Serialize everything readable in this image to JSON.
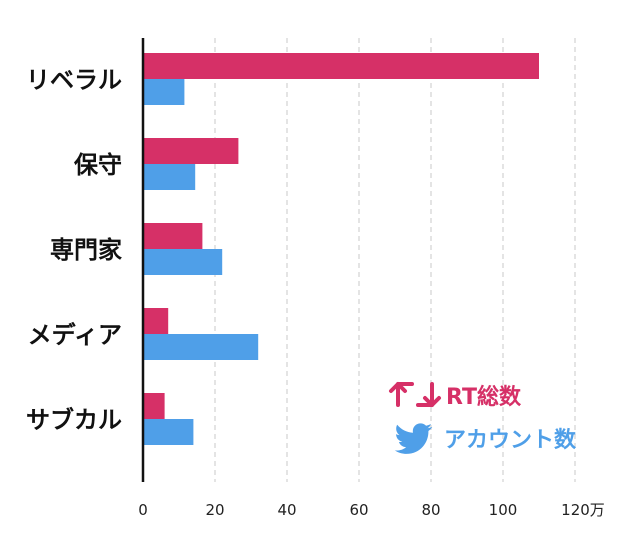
{
  "chart_data": {
    "type": "bar",
    "orientation": "horizontal",
    "categories": [
      "リベラル",
      "保守",
      "専門家",
      "メディア",
      "サブカル"
    ],
    "series": [
      {
        "name": "RT総数",
        "icon": "retweet-icon",
        "color": "#d63067",
        "values": [
          110,
          26.5,
          16.5,
          7,
          6
        ]
      },
      {
        "name": "アカウント数",
        "icon": "twitter-bird-icon",
        "color": "#4f9fe8",
        "values": [
          11.5,
          14.5,
          22,
          32,
          14
        ]
      }
    ],
    "xticks": [
      "0",
      "20",
      "40",
      "60",
      "80",
      "100",
      "120万"
    ],
    "xlim": [
      0,
      120
    ],
    "grid": "vertical dashed",
    "legend": "bottom-right"
  }
}
